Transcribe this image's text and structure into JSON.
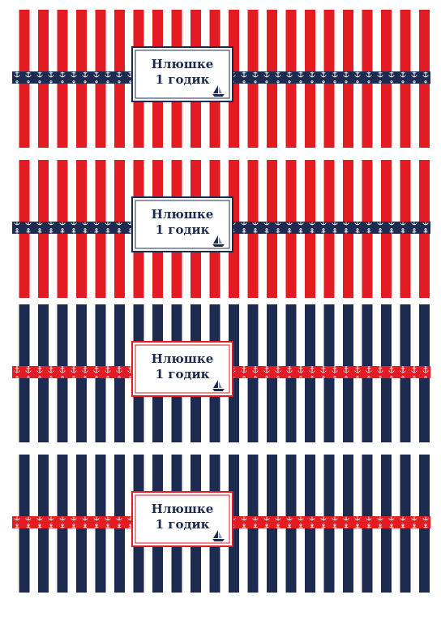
{
  "labels": [
    {
      "line1": "Нлюшке",
      "line2": "1 годик"
    },
    {
      "line1": "Нлюшке",
      "line2": "1 годик"
    },
    {
      "line1": "Нлюшке",
      "line2": "1 годик"
    },
    {
      "line1": "Нлюшке",
      "line2": "1 годик"
    }
  ]
}
